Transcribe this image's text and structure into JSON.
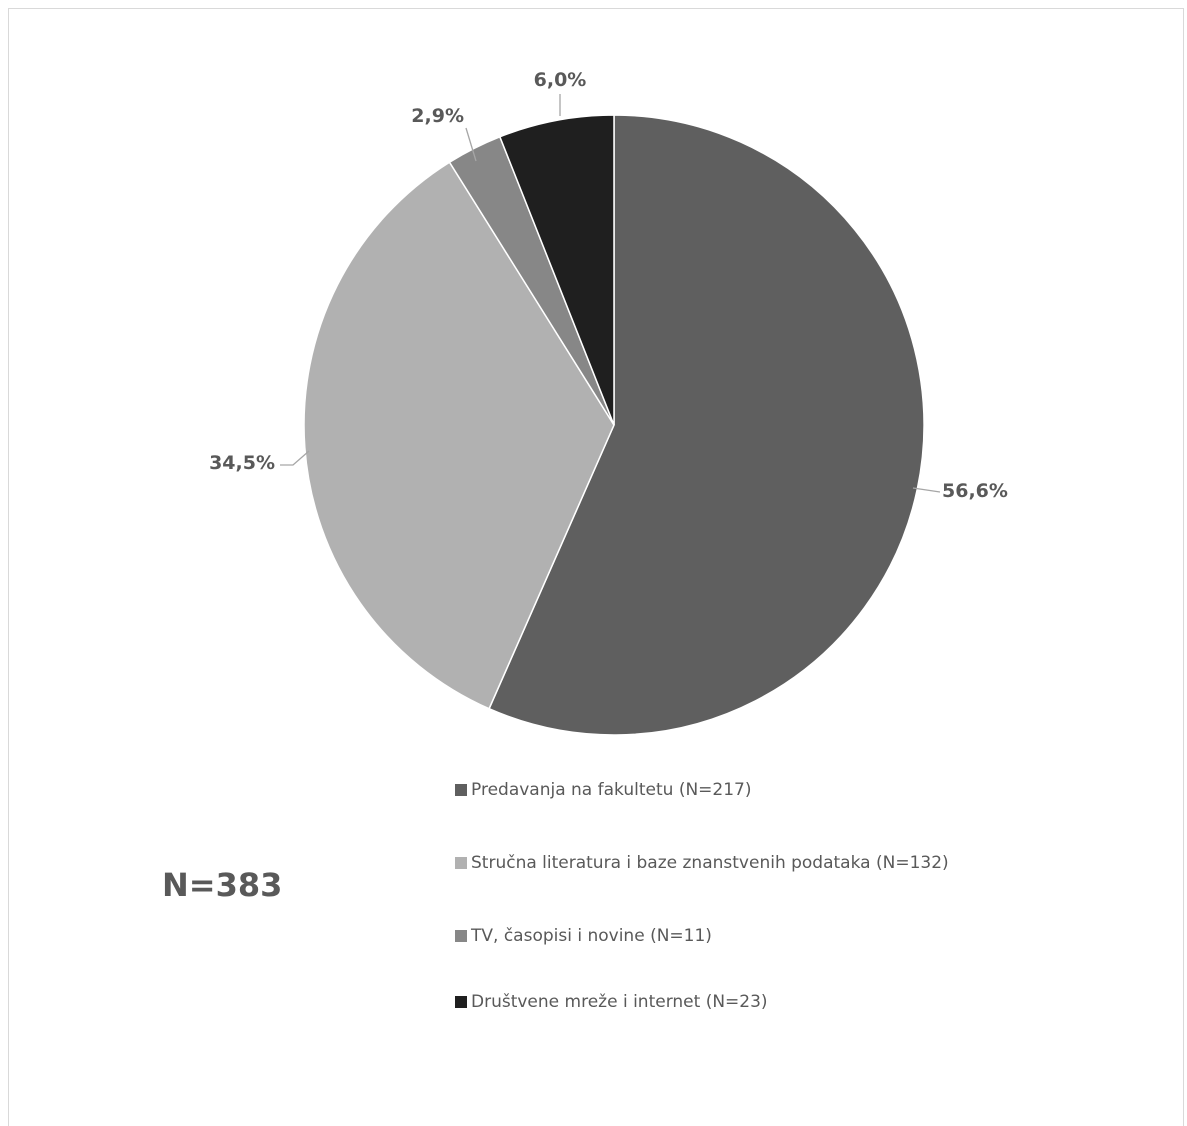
{
  "chart_data": {
    "type": "pie",
    "total_label": "N=383",
    "slices": [
      {
        "name": "Predavanja na fakultetu (N=217)",
        "value": 56.6,
        "label": "56,6%",
        "color": "#5f5f5f"
      },
      {
        "name": "Stručna literatura i baze znanstvenih podataka (N=132)",
        "value": 34.5,
        "label": "34,5%",
        "color": "#b1b1b1"
      },
      {
        "name": "TV, časopisi i novine (N=11)",
        "value": 2.9,
        "label": "2,9%",
        "color": "#878787"
      },
      {
        "name": "Društvene mreže i internet (N=23)",
        "value": 6.0,
        "label": "6,0%",
        "color": "#1f1f1f"
      }
    ],
    "legend_position": "bottom"
  }
}
